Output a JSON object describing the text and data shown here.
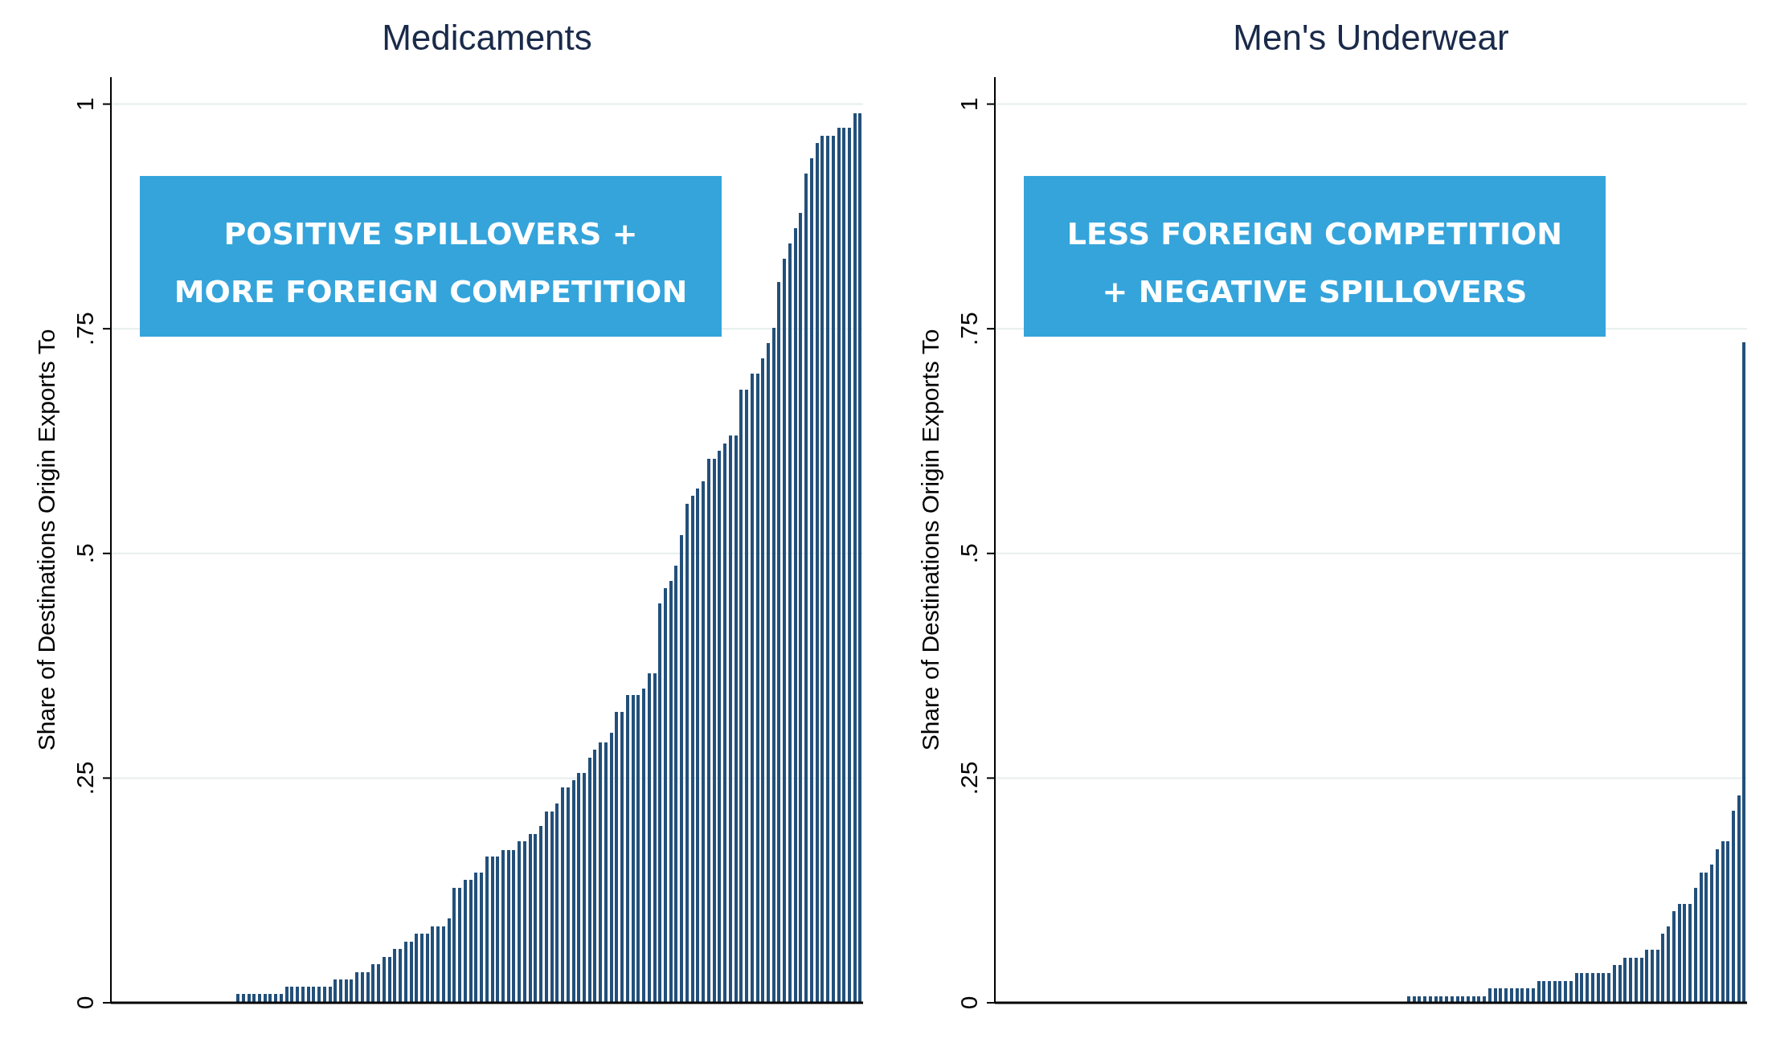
{
  "chart_data": [
    {
      "type": "bar",
      "title": "Medicaments",
      "ylabel": "Share of Destinations Origin Exports To",
      "color": "#23507a",
      "grid": "y",
      "ylim": [
        0,
        1.03
      ],
      "yticks": [
        {
          "value": 0,
          "label": "0"
        },
        {
          "value": 0.25,
          "label": ".25"
        },
        {
          "value": 0.5,
          "label": ".5"
        },
        {
          "value": 0.75,
          "label": ".75"
        },
        {
          "value": 1,
          "label": "1"
        }
      ],
      "annotations": [
        "POSITIVE SPILLOVERS + MORE FOREIGN COMPETITION"
      ],
      "categories": [
        null,
        null,
        null,
        null,
        null,
        null,
        null,
        null,
        null,
        null,
        null,
        null,
        null,
        null,
        null,
        null,
        null,
        null,
        null,
        null,
        null,
        null,
        null,
        null,
        null,
        null,
        null,
        null,
        null,
        null,
        null,
        null,
        null,
        null,
        null,
        null,
        null,
        null,
        null,
        null,
        null,
        null,
        null,
        null,
        null,
        null,
        null,
        null,
        null,
        null,
        null,
        null,
        null,
        null,
        null,
        null,
        null,
        null,
        null,
        null,
        null,
        null,
        null,
        null,
        null,
        null,
        null,
        null,
        null,
        null,
        null,
        null,
        null,
        null,
        null,
        null,
        null,
        null,
        null,
        null,
        null,
        null,
        null,
        null,
        null,
        null,
        null,
        null,
        null,
        null,
        null,
        null,
        null,
        null,
        null,
        null,
        null,
        null,
        null,
        null,
        null,
        null,
        null,
        null,
        null,
        null,
        null,
        null,
        null,
        null,
        null,
        null,
        null,
        null,
        null,
        null,
        null,
        null,
        null,
        null,
        null,
        null,
        null,
        null,
        null,
        null,
        null,
        null,
        null,
        null,
        null,
        null,
        null,
        null,
        null,
        null,
        null,
        null,
        null
      ],
      "values": [
        0,
        0,
        0,
        0,
        0,
        0,
        0,
        0,
        0,
        0,
        0,
        0,
        0,
        0,
        0,
        0,
        0,
        0,
        0,
        0,
        0,
        0,
        0,
        0.01,
        0.01,
        0.01,
        0.01,
        0.01,
        0.01,
        0.01,
        0.01,
        0.01,
        0.018,
        0.018,
        0.018,
        0.018,
        0.018,
        0.018,
        0.018,
        0.018,
        0.018,
        0.026,
        0.026,
        0.026,
        0.026,
        0.034,
        0.034,
        0.034,
        0.043,
        0.043,
        0.051,
        0.051,
        0.06,
        0.06,
        0.068,
        0.068,
        0.077,
        0.077,
        0.077,
        0.085,
        0.085,
        0.085,
        0.094,
        0.128,
        0.128,
        0.137,
        0.137,
        0.145,
        0.145,
        0.163,
        0.163,
        0.163,
        0.17,
        0.17,
        0.17,
        0.18,
        0.18,
        0.188,
        0.188,
        0.197,
        0.213,
        0.213,
        0.222,
        0.24,
        0.24,
        0.248,
        0.256,
        0.256,
        0.273,
        0.282,
        0.29,
        0.29,
        0.3,
        0.324,
        0.324,
        0.342,
        0.342,
        0.342,
        0.35,
        0.367,
        0.367,
        0.444,
        0.461,
        0.469,
        0.486,
        0.52,
        0.555,
        0.564,
        0.572,
        0.58,
        0.605,
        0.605,
        0.614,
        0.622,
        0.631,
        0.631,
        0.682,
        0.682,
        0.7,
        0.7,
        0.717,
        0.734,
        0.751,
        0.802,
        0.828,
        0.845,
        0.862,
        0.879,
        0.923,
        0.94,
        0.957,
        0.965,
        0.965,
        0.965,
        0.974,
        0.974,
        0.974,
        0.99,
        0.99
      ]
    },
    {
      "type": "bar",
      "title": "Men's Underwear",
      "ylabel": "Share of Destinations Origin Exports To",
      "color": "#23507a",
      "grid": "y",
      "ylim": [
        0,
        1.03
      ],
      "yticks": [
        {
          "value": 0,
          "label": "0"
        },
        {
          "value": 0.25,
          "label": ".25"
        },
        {
          "value": 0.5,
          "label": ".5"
        },
        {
          "value": 0.75,
          "label": ".75"
        },
        {
          "value": 1,
          "label": "1"
        }
      ],
      "annotations": [
        "LESS FOREIGN COMPETITION + NEGATIVE SPILLOVERS"
      ],
      "categories": [
        null,
        null,
        null,
        null,
        null,
        null,
        null,
        null,
        null,
        null,
        null,
        null,
        null,
        null,
        null,
        null,
        null,
        null,
        null,
        null,
        null,
        null,
        null,
        null,
        null,
        null,
        null,
        null,
        null,
        null,
        null,
        null,
        null,
        null,
        null,
        null,
        null,
        null,
        null,
        null,
        null,
        null,
        null,
        null,
        null,
        null,
        null,
        null,
        null,
        null,
        null,
        null,
        null,
        null,
        null,
        null,
        null,
        null,
        null,
        null,
        null,
        null,
        null,
        null,
        null,
        null,
        null,
        null,
        null,
        null,
        null,
        null,
        null,
        null,
        null,
        null,
        null,
        null,
        null,
        null,
        null,
        null,
        null,
        null,
        null,
        null,
        null,
        null,
        null,
        null,
        null,
        null,
        null,
        null,
        null,
        null,
        null,
        null,
        null,
        null,
        null,
        null,
        null,
        null,
        null,
        null,
        null,
        null,
        null,
        null,
        null,
        null,
        null,
        null,
        null,
        null,
        null,
        null,
        null,
        null,
        null,
        null,
        null,
        null,
        null,
        null,
        null,
        null,
        null,
        null,
        null,
        null,
        null,
        null,
        null,
        null,
        null,
        null,
        null
      ],
      "values": [
        0,
        0,
        0,
        0,
        0,
        0,
        0,
        0,
        0,
        0,
        0,
        0,
        0,
        0,
        0,
        0,
        0,
        0,
        0,
        0,
        0,
        0,
        0,
        0,
        0,
        0,
        0,
        0,
        0,
        0,
        0,
        0,
        0,
        0,
        0,
        0,
        0,
        0,
        0,
        0,
        0,
        0,
        0,
        0,
        0,
        0,
        0,
        0,
        0,
        0,
        0,
        0,
        0,
        0,
        0,
        0,
        0,
        0,
        0,
        0,
        0,
        0,
        0,
        0,
        0,
        0,
        0,
        0,
        0,
        0,
        0,
        0,
        0,
        0,
        0,
        0,
        0.007,
        0.007,
        0.007,
        0.007,
        0.007,
        0.007,
        0.007,
        0.007,
        0.007,
        0.007,
        0.007,
        0.007,
        0.007,
        0.007,
        0.007,
        0.016,
        0.016,
        0.016,
        0.016,
        0.016,
        0.016,
        0.016,
        0.016,
        0.016,
        0.024,
        0.024,
        0.024,
        0.024,
        0.024,
        0.024,
        0.024,
        0.033,
        0.033,
        0.033,
        0.033,
        0.033,
        0.033,
        0.033,
        0.042,
        0.042,
        0.05,
        0.05,
        0.05,
        0.05,
        0.059,
        0.059,
        0.059,
        0.077,
        0.085,
        0.102,
        0.11,
        0.11,
        0.11,
        0.128,
        0.145,
        0.145,
        0.154,
        0.171,
        0.18,
        0.18,
        0.214,
        0.231,
        0.735
      ]
    }
  ]
}
